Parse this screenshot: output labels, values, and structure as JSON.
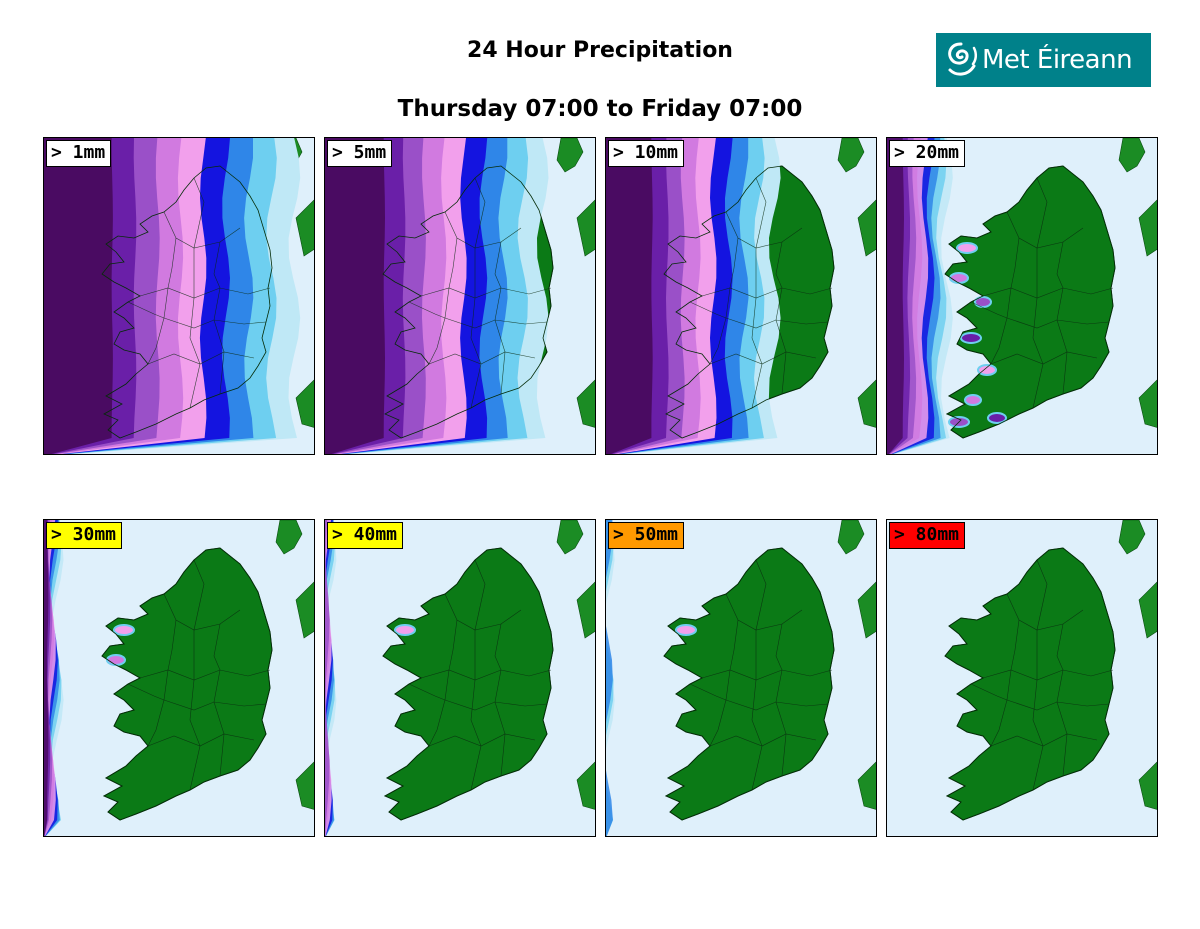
{
  "header": {
    "title": "24 Hour Precipitation",
    "subtitle": "Thursday 07:00 to Friday 07:00"
  },
  "logo": {
    "text": "Met Éireann",
    "icon": "swirl-logo-icon",
    "background": "#00818a"
  },
  "colors": {
    "sea": "#dff0fb",
    "land": "#0b7a16",
    "great_britain": "#1b8c24",
    "precip_scale": [
      "#bfe8f6",
      "#6ecff0",
      "#2f86e8",
      "#1414e0",
      "#f2a0ec",
      "#d17ae0",
      "#9a50c8",
      "#6a1fa8",
      "#4a0b62"
    ]
  },
  "panels": [
    {
      "label": "> 1mm",
      "label_bg": "#ffffff",
      "coverage": 0.92
    },
    {
      "label": "> 5mm",
      "label_bg": "#ffffff",
      "coverage": 0.8
    },
    {
      "label": "> 10mm",
      "label_bg": "#ffffff",
      "coverage": 0.62
    },
    {
      "label": "> 20mm",
      "label_bg": "#ffffff",
      "coverage": 0.22
    },
    {
      "label": "> 30mm",
      "label_bg": "#ffff00",
      "coverage": 0.05
    },
    {
      "label": "> 40mm",
      "label_bg": "#ffff00",
      "coverage": 0.02
    },
    {
      "label": "> 50mm",
      "label_bg": "#ff9900",
      "coverage": 0.01
    },
    {
      "label": "> 80mm",
      "label_bg": "#ff0000",
      "coverage": 0.0
    }
  ]
}
